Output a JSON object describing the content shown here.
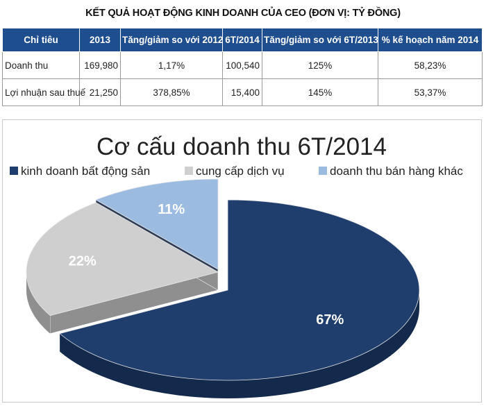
{
  "table": {
    "title": "KẾT QUẢ HOẠT ĐỘNG KINH DOANH CỦA CEO (ĐƠN VỊ: TỶ ĐỒNG)",
    "headers": [
      "Chỉ tiêu",
      "2013",
      "Tăng/giảm so với 2012",
      "6T/2014",
      "Tăng/giảm so với 6T/2013",
      "% kế hoạch năm 2014"
    ],
    "rows": [
      [
        "Doanh thu",
        "169,980",
        "1,17%",
        "100,540",
        "125%",
        "58,23%"
      ],
      [
        "Lợi nhuận sau thuế",
        "21,250",
        "378,85%",
        "15,400",
        "145%",
        "53,37%"
      ]
    ]
  },
  "chart_data": {
    "type": "pie",
    "title": "Cơ cấu doanh thu 6T/2014",
    "legend_position": "top",
    "categories": [
      "kinh doanh bất động sản",
      "cung cấp dịch vụ",
      "doanh thu bán hàng khác"
    ],
    "values": [
      67,
      22,
      11
    ],
    "value_labels": [
      "67%",
      "22%",
      "11%"
    ],
    "colors": [
      "#1f3e6d",
      "#cfcfcf",
      "#9bbbe0"
    ],
    "side_colors": [
      "#142a4c",
      "#8f8f8f",
      "#2e3c55"
    ],
    "label_colors": [
      "#ffffff",
      "#ffffff",
      "#ffffff"
    ]
  }
}
